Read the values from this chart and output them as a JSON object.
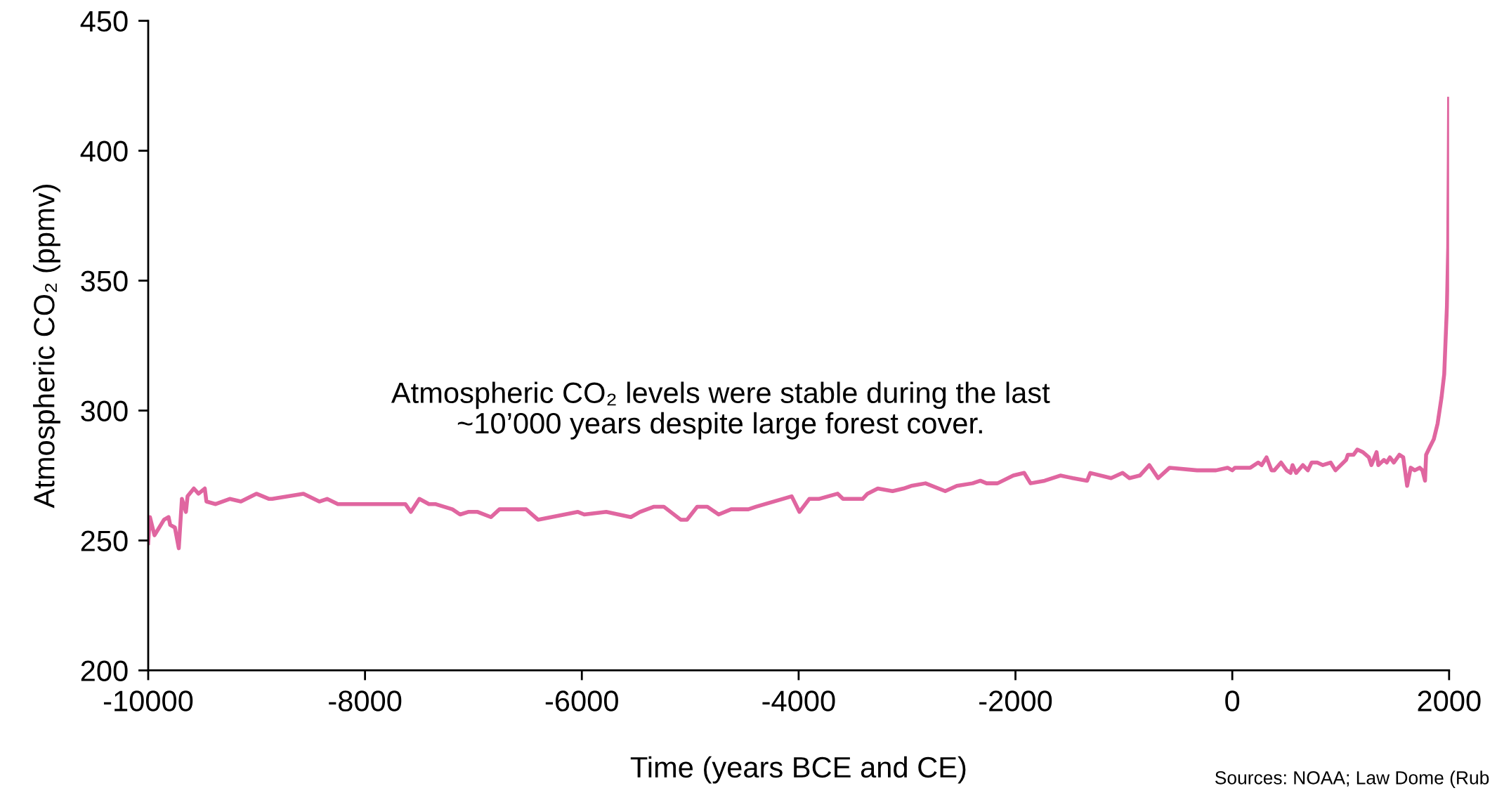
{
  "chart_data": {
    "type": "line",
    "xlabel": "Time (years BCE and CE)",
    "ylabel": "Atmospheric CO₂ (ppmv)",
    "xlim": [
      -10000,
      2000
    ],
    "xticks": [
      -10000,
      -8000,
      -6000,
      -4000,
      -2000,
      0,
      2000
    ],
    "ylim": [
      200,
      450
    ],
    "yticks": [
      200,
      250,
      300,
      350,
      400,
      450
    ],
    "grid": false,
    "marker": "none",
    "line_style": "solid",
    "annotations": [
      "Atmospheric CO₂ levels were stable during the last\n~10’000 years despite large forest cover.",
      "Sources: NOAA; Law Dome (Rub"
    ],
    "series": [
      {
        "color": "#e066a0",
        "x": [
          -10000,
          -9984,
          -9942,
          -9898,
          -9854,
          -9812,
          -9797,
          -9754,
          -9718,
          -9689,
          -9652,
          -9637,
          -9579,
          -9536,
          -9478,
          -9463,
          -9378,
          -9248,
          -9145,
          -9002,
          -8885,
          -8856,
          -8568,
          -8422,
          -8350,
          -8250,
          -8192,
          -7959,
          -7628,
          -7577,
          -7499,
          -7410,
          -7352,
          -7194,
          -7123,
          -7048,
          -6961,
          -6838,
          -6760,
          -6514,
          -6404,
          -6036,
          -5978,
          -5775,
          -5548,
          -5464,
          -5334,
          -5244,
          -5088,
          -5030,
          -4936,
          -4842,
          -4738,
          -4623,
          -4464,
          -4392,
          -4064,
          -3993,
          -3902,
          -3814,
          -3640,
          -3591,
          -3410,
          -3365,
          -3270,
          -3134,
          -3033,
          -2962,
          -2830,
          -2648,
          -2541,
          -2396,
          -2324,
          -2266,
          -2166,
          -2020,
          -1920,
          -1861,
          -1731,
          -1586,
          -1471,
          -1339,
          -1310,
          -1118,
          -1012,
          -949,
          -853,
          -765,
          -684,
          -578,
          -325,
          -150,
          -43,
          0,
          24,
          133,
          167,
          239,
          271,
          316,
          362,
          388,
          450,
          502,
          537,
          556,
          589,
          651,
          697,
          732,
          784,
          836,
          907,
          952,
          1050,
          1066,
          1119,
          1153,
          1205,
          1260,
          1283,
          1331,
          1347,
          1399,
          1425,
          1454,
          1490,
          1542,
          1577,
          1613,
          1646,
          1683,
          1729,
          1754,
          1778,
          1788,
          1823,
          1859,
          1894,
          1930,
          1955,
          1980,
          1992,
          1997,
          2000
        ],
        "values": [
          249,
          259,
          252,
          255,
          258,
          259,
          256,
          255,
          247,
          266,
          261,
          267,
          270,
          268,
          270,
          265,
          264,
          266,
          265,
          268,
          266,
          266,
          268,
          265,
          266,
          264,
          264,
          264,
          264,
          261,
          266,
          264,
          264,
          262,
          260,
          261,
          261,
          259,
          262,
          262,
          258,
          261,
          260,
          261,
          259,
          261,
          263,
          263,
          258,
          258,
          263,
          263,
          260,
          262,
          262,
          263,
          267,
          261,
          266,
          266,
          268,
          266,
          266,
          268,
          270,
          269,
          270,
          271,
          272,
          269,
          271,
          272,
          273,
          272,
          272,
          275,
          276,
          272,
          273,
          275,
          274,
          273,
          276,
          274,
          276,
          274,
          275,
          279,
          274,
          278,
          277,
          277,
          278,
          277,
          278,
          278,
          278,
          280,
          279,
          282,
          277,
          277,
          280,
          277,
          276,
          279,
          276,
          279,
          277,
          280,
          280,
          279,
          280,
          277,
          281,
          283,
          283,
          285,
          284,
          282,
          279,
          284,
          279,
          281,
          280,
          282,
          280,
          283,
          282,
          271,
          278,
          277,
          278,
          277,
          273,
          283,
          286,
          289,
          295,
          305,
          314,
          340,
          363,
          396,
          420
        ]
      }
    ]
  }
}
